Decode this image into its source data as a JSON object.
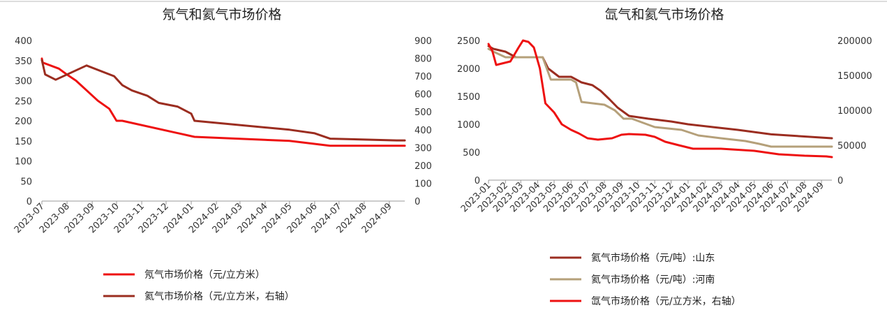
{
  "chart_data": [
    {
      "type": "line",
      "title": "氖气和氦气市场价格",
      "x_ticks": [
        "2023-07",
        "2023-08",
        "2023-09",
        "2023-10",
        "2023-11",
        "2023-12",
        "2024-01",
        "2024-02",
        "2024-03",
        "2024-04",
        "2024-05",
        "2024-06",
        "2024-07",
        "2024-08",
        "2024-09"
      ],
      "xlim": [
        "2023-07-01",
        "2024-09-20"
      ],
      "ylim": [
        0,
        400
      ],
      "y_ticks": [
        0,
        50,
        100,
        150,
        200,
        250,
        300,
        350,
        400
      ],
      "y2lim": [
        0,
        900
      ],
      "y2_ticks": [
        0,
        100,
        200,
        300,
        400,
        500,
        600,
        700,
        800,
        900
      ],
      "legend_position": "bottom",
      "series": [
        {
          "name": "氖气市场价格（元/立方米）",
          "axis": "left",
          "color": "#ee1111",
          "x": [
            "2023-07-01",
            "2023-07-02",
            "2023-07-22",
            "2023-08-01",
            "2023-08-12",
            "2023-09-08",
            "2023-09-22",
            "2023-10-01",
            "2023-10-08",
            "2024-01-05",
            "2024-05-01",
            "2024-06-20",
            "2024-09-20"
          ],
          "y": [
            355,
            345,
            330,
            315,
            300,
            250,
            230,
            200,
            200,
            160,
            150,
            138,
            138
          ]
        },
        {
          "name": "氦气市场价格（元/立方米，右轴）",
          "axis": "right",
          "color": "#9b2d20",
          "x": [
            "2023-07-01",
            "2023-07-05",
            "2023-07-18",
            "2023-08-25",
            "2023-09-28",
            "2023-10-08",
            "2023-10-20",
            "2023-11-08",
            "2023-11-22",
            "2023-12-15",
            "2024-01-01",
            "2024-01-05",
            "2024-05-01",
            "2024-06-01",
            "2024-06-20",
            "2024-09-10",
            "2024-09-20"
          ],
          "y": [
            790,
            710,
            680,
            760,
            700,
            650,
            620,
            590,
            550,
            530,
            490,
            450,
            400,
            380,
            350,
            340,
            340
          ]
        }
      ]
    },
    {
      "type": "line",
      "title": "氙气和氦气市场价格",
      "x_ticks": [
        "2023-01",
        "2023-02",
        "2023-03",
        "2023-04",
        "2023-05",
        "2023-06",
        "2023-07",
        "2023-08",
        "2023-09",
        "2023-10",
        "2023-11",
        "2023-12",
        "2024-01",
        "2024-02",
        "2024-03",
        "2024-04",
        "2024-05",
        "2024-06",
        "2024-07",
        "2024-08",
        "2024-09"
      ],
      "xlim": [
        "2023-01-01",
        "2024-09-20"
      ],
      "ylim": [
        0,
        2500
      ],
      "y_ticks": [
        0,
        500,
        1000,
        1500,
        2000,
        2500
      ],
      "y2lim": [
        0,
        200000
      ],
      "y2_ticks": [
        0,
        50000,
        100000,
        150000,
        200000
      ],
      "legend_position": "bottom",
      "series": [
        {
          "name": "氦气市场价格（元/吨）:山东",
          "axis": "left",
          "color": "#9b2d20",
          "x": [
            "2023-01-01",
            "2023-01-10",
            "2023-02-01",
            "2023-02-20",
            "2023-04-10",
            "2023-04-20",
            "2023-05-10",
            "2023-06-01",
            "2023-06-20",
            "2023-07-10",
            "2023-07-25",
            "2023-08-10",
            "2023-08-25",
            "2023-09-15",
            "2023-10-20",
            "2023-12-01",
            "2024-01-01",
            "2024-02-15",
            "2024-04-01",
            "2024-06-01",
            "2024-09-20"
          ],
          "y": [
            2400,
            2350,
            2300,
            2200,
            2200,
            2000,
            1850,
            1850,
            1750,
            1700,
            1600,
            1450,
            1300,
            1150,
            1100,
            1050,
            1000,
            950,
            900,
            820,
            750
          ]
        },
        {
          "name": "氦气市场价格（元/吨）:河南",
          "axis": "left",
          "color": "#b5a07a",
          "x": [
            "2023-01-01",
            "2023-01-10",
            "2023-02-01",
            "2023-04-10",
            "2023-04-25",
            "2023-06-01",
            "2023-06-10",
            "2023-06-20",
            "2023-08-01",
            "2023-08-20",
            "2023-09-05",
            "2023-09-20",
            "2023-11-01",
            "2023-12-20",
            "2024-01-20",
            "2024-03-01",
            "2024-04-15",
            "2024-05-10",
            "2024-06-01",
            "2024-09-20"
          ],
          "y": [
            2350,
            2300,
            2200,
            2200,
            1800,
            1800,
            1750,
            1400,
            1350,
            1250,
            1100,
            1100,
            950,
            900,
            800,
            750,
            700,
            650,
            600,
            600
          ]
        },
        {
          "name": "氙气市场价格（元/立方米，右轴）",
          "axis": "right",
          "color": "#ee1111",
          "x": [
            "2023-01-01",
            "2023-01-08",
            "2023-01-15",
            "2023-02-10",
            "2023-02-25",
            "2023-03-05",
            "2023-03-15",
            "2023-03-25",
            "2023-04-05",
            "2023-04-15",
            "2023-05-01",
            "2023-05-15",
            "2023-06-01",
            "2023-06-15",
            "2023-07-01",
            "2023-07-20",
            "2023-08-15",
            "2023-09-01",
            "2023-09-15",
            "2023-10-15",
            "2023-11-01",
            "2023-11-20",
            "2023-12-15",
            "2024-01-10",
            "2024-03-01",
            "2024-05-01",
            "2024-06-15",
            "2024-08-01",
            "2024-09-10",
            "2024-09-20"
          ],
          "y": [
            195000,
            185000,
            165000,
            170000,
            190000,
            200000,
            198000,
            190000,
            160000,
            110000,
            97000,
            80000,
            72000,
            67000,
            60000,
            58000,
            60000,
            65000,
            66000,
            65000,
            62000,
            55000,
            50000,
            45000,
            45000,
            42000,
            37000,
            35000,
            34000,
            33000
          ]
        }
      ]
    }
  ]
}
